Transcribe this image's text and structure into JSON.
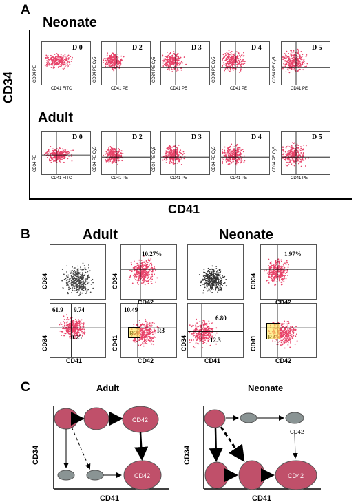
{
  "panel_a": {
    "letter": "A",
    "rows": [
      {
        "title": "Neonate",
        "days": [
          "D 0",
          "D 2",
          "D 3",
          "D 4",
          "D 5"
        ],
        "ylabels": [
          "CD34 PE",
          "CD34 PE Cy5",
          "CD34 PE Cy5",
          "CD34 PE Cy5",
          "CD34 PE Cy5"
        ],
        "xlabels": [
          "CD41 FITC",
          "CD41 PE",
          "CD41 PE",
          "CD41 PE",
          "CD41 PE"
        ]
      },
      {
        "title": "Adult",
        "days": [
          "D 0",
          "D 2",
          "D 3",
          "D 4",
          "D 5"
        ],
        "ylabels": [
          "CD34 PE",
          "CD34 PE Cy5",
          "CD34 PE Cy5",
          "CD34 PE Cy5",
          "CD34 PE Cy5"
        ],
        "xlabels": [
          "CD41 FITC",
          "CD41 PE",
          "CD41 PE",
          "CD41 PE",
          "CD41 PE"
        ]
      }
    ],
    "y_axis": "CD34",
    "x_axis": "CD41"
  },
  "panel_b": {
    "letter": "B",
    "adult_title": "Adult",
    "neonate_title": "Neonate",
    "adult_top_pct": "10.27%",
    "neonate_top_pct": "1.97%",
    "adult_q_tl": "61.9",
    "adult_q_tr": "9.74",
    "adult_q_bl": "0.75",
    "adult_gate_top": "10.49",
    "gate_r2": "R2",
    "gate_r3": "R3",
    "neonate_q_tr": "6.80",
    "neonate_q_br": "12.3",
    "label_cd34": "CD34",
    "label_cd41": "CD41",
    "label_cd42": "CD42"
  },
  "panel_c": {
    "letter": "C",
    "adult_title": "Adult",
    "neonate_title": "Neonate",
    "y_axis": "CD34",
    "x_axis": "CD41",
    "cd42": "CD42",
    "colors": {
      "cell": "#c0506a",
      "gray_cell": "#8a9494"
    }
  }
}
